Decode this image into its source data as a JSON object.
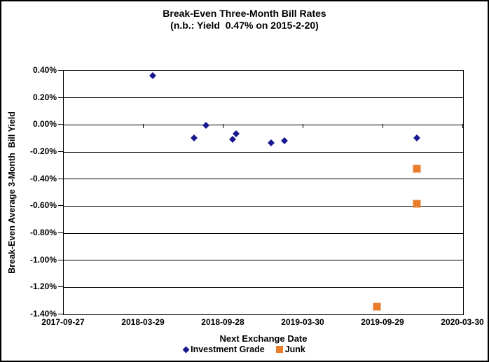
{
  "chart_data": {
    "type": "scatter",
    "title": "Break-Even Three-Month Bill Rates",
    "subtitle": "(n.b.: Yield  0.47% on 2015-2-20)",
    "xlabel": "Next Exchange Date",
    "ylabel": "Break-Even Average 3-Month  Bill Yield",
    "x_ticks": [
      "2017-09-27",
      "2018-03-29",
      "2018-09-28",
      "2019-03-30",
      "2019-09-29",
      "2020-03-30"
    ],
    "y_ticks": [
      "0.40%",
      "0.20%",
      "0.00%",
      "-0.20%",
      "-0.40%",
      "-0.60%",
      "-0.80%",
      "-1.00%",
      "-1.20%",
      "-1.40%"
    ],
    "ylim": [
      -1.4,
      0.4
    ],
    "y_step": 0.2,
    "y_unit": "percent",
    "grid": "horizontal",
    "legend_position": "bottom",
    "axis_color": "#000000",
    "background_color": "#ffffff",
    "series": [
      {
        "name": "Investment Grade",
        "marker": "diamond",
        "color": "#18188F",
        "points": [
          {
            "x": "2018-04-20",
            "y": 0.36
          },
          {
            "x": "2018-07-24",
            "y": -0.1
          },
          {
            "x": "2018-08-21",
            "y": -0.01
          },
          {
            "x": "2018-10-21",
            "y": -0.11
          },
          {
            "x": "2018-10-29",
            "y": -0.07
          },
          {
            "x": "2019-01-16",
            "y": -0.14
          },
          {
            "x": "2019-02-17",
            "y": -0.12
          },
          {
            "x": "2019-12-16",
            "y": -0.1
          }
        ]
      },
      {
        "name": "Junk",
        "marker": "square",
        "color": "#E87D2E",
        "points": [
          {
            "x": "2019-09-16",
            "y": -1.35
          },
          {
            "x": "2019-12-16",
            "y": -0.33
          },
          {
            "x": "2019-12-16",
            "y": -0.59
          }
        ]
      }
    ]
  }
}
